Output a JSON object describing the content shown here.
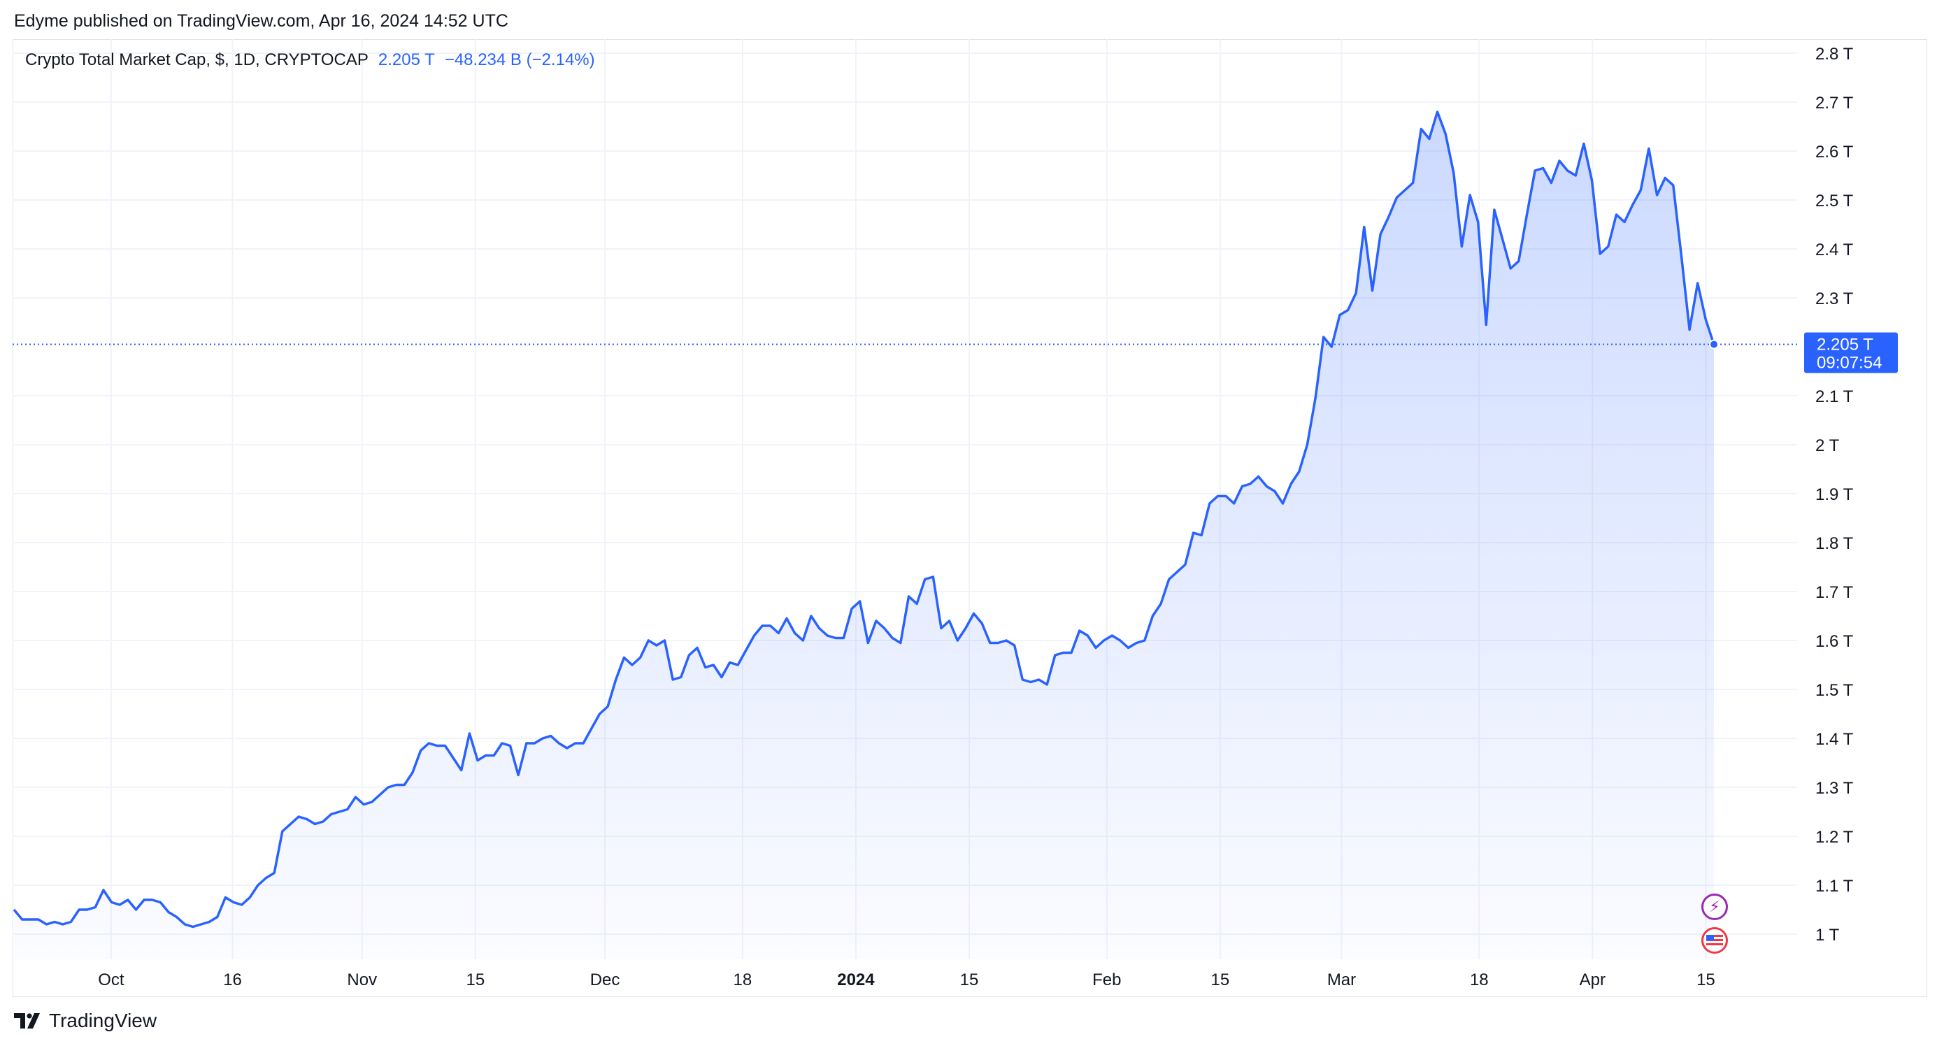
{
  "header": {
    "publisher_line": "Edyme published on TradingView.com, Apr 16, 2024 14:52 UTC"
  },
  "legend": {
    "symbol": "Crypto Total Market Cap, $, 1D, CRYPTOCAP",
    "last_value": "2.205 T",
    "change": "−48.234 B (−2.14%)"
  },
  "price_label": {
    "value": "2.205 T",
    "countdown": "09:07:54"
  },
  "footer": {
    "brand": "TradingView",
    "logo_icon": "tradingview-logo-icon"
  },
  "badges": {
    "flash_icon": "lightning-icon",
    "flag_icon": "us-flag-icon"
  },
  "colors": {
    "line": "#2962ff",
    "fill_top": "#2962ff",
    "grid": "#f0f3fa",
    "label_bg": "#2962ff"
  },
  "chart_data": {
    "type": "area",
    "title": "Crypto Total Market Cap, $, 1D, CRYPTOCAP",
    "xlabel": "",
    "ylabel": "",
    "x_start": "2023-09-19",
    "x_end": "2024-04-16",
    "ylim": [
      0.95,
      2.82
    ],
    "y_ticks": [
      {
        "v": 1.0,
        "label": "1 T"
      },
      {
        "v": 1.1,
        "label": "1.1 T"
      },
      {
        "v": 1.2,
        "label": "1.2 T"
      },
      {
        "v": 1.3,
        "label": "1.3 T"
      },
      {
        "v": 1.4,
        "label": "1.4 T"
      },
      {
        "v": 1.5,
        "label": "1.5 T"
      },
      {
        "v": 1.6,
        "label": "1.6 T"
      },
      {
        "v": 1.7,
        "label": "1.7 T"
      },
      {
        "v": 1.8,
        "label": "1.8 T"
      },
      {
        "v": 1.9,
        "label": "1.9 T"
      },
      {
        "v": 2.0,
        "label": "2 T"
      },
      {
        "v": 2.1,
        "label": "2.1 T"
      },
      {
        "v": 2.3,
        "label": "2.3 T"
      },
      {
        "v": 2.4,
        "label": "2.4 T"
      },
      {
        "v": 2.5,
        "label": "2.5 T"
      },
      {
        "v": 2.6,
        "label": "2.6 T"
      },
      {
        "v": 2.7,
        "label": "2.7 T"
      },
      {
        "v": 2.8,
        "label": "2.8 T"
      }
    ],
    "x_ticks": [
      {
        "date": "2023-10-01",
        "label": "Oct",
        "bold": false
      },
      {
        "date": "2023-10-16",
        "label": "16",
        "bold": false
      },
      {
        "date": "2023-11-01",
        "label": "Nov",
        "bold": false
      },
      {
        "date": "2023-11-15",
        "label": "15",
        "bold": false
      },
      {
        "date": "2023-12-01",
        "label": "Dec",
        "bold": false
      },
      {
        "date": "2023-12-18",
        "label": "18",
        "bold": false
      },
      {
        "date": "2024-01-01",
        "label": "2024",
        "bold": true
      },
      {
        "date": "2024-01-15",
        "label": "15",
        "bold": false
      },
      {
        "date": "2024-02-01",
        "label": "Feb",
        "bold": false
      },
      {
        "date": "2024-02-15",
        "label": "15",
        "bold": false
      },
      {
        "date": "2024-03-01",
        "label": "Mar",
        "bold": false
      },
      {
        "date": "2024-03-18",
        "label": "18",
        "bold": false
      },
      {
        "date": "2024-04-01",
        "label": "Apr",
        "bold": false
      },
      {
        "date": "2024-04-15",
        "label": "15",
        "bold": false
      }
    ],
    "grid": true,
    "last_value": 2.205,
    "series": [
      {
        "values": [
          1.05,
          1.03,
          1.03,
          1.03,
          1.02,
          1.025,
          1.02,
          1.025,
          1.05,
          1.05,
          1.055,
          1.09,
          1.065,
          1.06,
          1.07,
          1.05,
          1.07,
          1.07,
          1.065,
          1.045,
          1.035,
          1.02,
          1.015,
          1.02,
          1.025,
          1.035,
          1.075,
          1.065,
          1.06,
          1.075,
          1.1,
          1.115,
          1.125,
          1.21,
          1.225,
          1.24,
          1.235,
          1.225,
          1.23,
          1.245,
          1.25,
          1.255,
          1.28,
          1.265,
          1.27,
          1.285,
          1.3,
          1.305,
          1.305,
          1.33,
          1.375,
          1.39,
          1.385,
          1.385,
          1.36,
          1.335,
          1.41,
          1.355,
          1.365,
          1.365,
          1.39,
          1.385,
          1.325,
          1.39,
          1.39,
          1.4,
          1.405,
          1.39,
          1.38,
          1.39,
          1.39,
          1.42,
          1.45,
          1.465,
          1.52,
          1.565,
          1.55,
          1.565,
          1.6,
          1.59,
          1.6,
          1.52,
          1.525,
          1.57,
          1.585,
          1.545,
          1.55,
          1.525,
          1.555,
          1.55,
          1.58,
          1.61,
          1.63,
          1.63,
          1.615,
          1.645,
          1.615,
          1.6,
          1.65,
          1.625,
          1.61,
          1.605,
          1.605,
          1.665,
          1.68,
          1.595,
          1.64,
          1.625,
          1.605,
          1.595,
          1.69,
          1.675,
          1.725,
          1.73,
          1.625,
          1.64,
          1.6,
          1.625,
          1.655,
          1.635,
          1.595,
          1.595,
          1.6,
          1.59,
          1.52,
          1.515,
          1.52,
          1.51,
          1.57,
          1.575,
          1.575,
          1.62,
          1.61,
          1.585,
          1.6,
          1.61,
          1.6,
          1.585,
          1.595,
          1.6,
          1.65,
          1.675,
          1.725,
          1.74,
          1.755,
          1.82,
          1.815,
          1.88,
          1.895,
          1.895,
          1.88,
          1.915,
          1.92,
          1.935,
          1.915,
          1.905,
          1.88,
          1.92,
          1.945,
          2.0,
          2.095,
          2.22,
          2.2,
          2.265,
          2.275,
          2.31,
          2.445,
          2.315,
          2.43,
          2.465,
          2.505,
          2.52,
          2.535,
          2.645,
          2.625,
          2.68,
          2.635,
          2.555,
          2.405,
          2.51,
          2.455,
          2.245,
          2.48,
          2.42,
          2.36,
          2.375,
          2.47,
          2.56,
          2.565,
          2.535,
          2.58,
          2.56,
          2.55,
          2.615,
          2.54,
          2.39,
          2.405,
          2.47,
          2.455,
          2.49,
          2.52,
          2.605,
          2.51,
          2.545,
          2.53,
          2.385,
          2.235,
          2.33,
          2.255,
          2.205
        ]
      }
    ]
  }
}
